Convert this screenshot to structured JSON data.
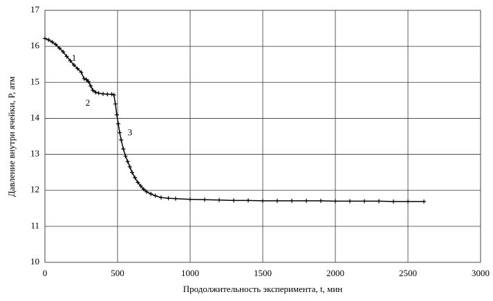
{
  "chart_data": {
    "type": "line",
    "x_label": "Продолжительность эксперимента, t, мин",
    "y_label": "Давление внутри ячейки, P, атм",
    "annotations": [
      "1",
      "2",
      "3"
    ],
    "x": [
      0,
      25,
      50,
      75,
      100,
      125,
      150,
      175,
      200,
      225,
      250,
      270,
      285,
      300,
      315,
      330,
      350,
      370,
      400,
      430,
      460,
      475,
      485,
      495,
      505,
      515,
      525,
      540,
      555,
      570,
      585,
      600,
      620,
      640,
      660,
      680,
      700,
      730,
      760,
      800,
      850,
      900,
      1000,
      1100,
      1200,
      1300,
      1400,
      1500,
      1600,
      1700,
      1800,
      1900,
      2000,
      2100,
      2200,
      2300,
      2400,
      2500,
      2610
    ],
    "series": [
      {
        "color": "#000000",
        "values": [
          16.22,
          16.18,
          16.12,
          16.05,
          15.95,
          15.85,
          15.72,
          15.6,
          15.48,
          15.38,
          15.28,
          15.1,
          15.08,
          15.02,
          14.9,
          14.78,
          14.72,
          14.7,
          14.68,
          14.67,
          14.67,
          14.65,
          14.4,
          14.1,
          13.85,
          13.6,
          13.4,
          13.15,
          12.95,
          12.8,
          12.65,
          12.5,
          12.35,
          12.22,
          12.12,
          12.03,
          11.96,
          11.9,
          11.85,
          11.8,
          11.78,
          11.77,
          11.75,
          11.74,
          11.73,
          11.72,
          11.72,
          11.71,
          11.71,
          11.71,
          11.71,
          11.71,
          11.7,
          11.7,
          11.7,
          11.7,
          11.69,
          11.69,
          11.69
        ]
      }
    ],
    "xlim": [
      0,
      3000
    ],
    "xticks": [
      0,
      500,
      1000,
      1500,
      2000,
      2500,
      3000
    ],
    "ylim": [
      10,
      17
    ],
    "yticks": [
      10,
      11,
      12,
      13,
      14,
      15,
      16,
      17
    ],
    "grid": true
  }
}
